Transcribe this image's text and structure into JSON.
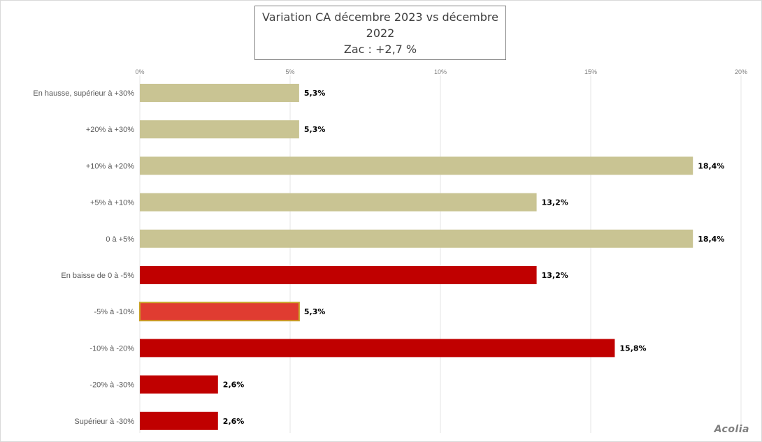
{
  "title": {
    "line1": "Variation CA décembre 2023 vs décembre",
    "line2": "2022",
    "line3": "Zac : +2,7 %"
  },
  "logo": "Acolia",
  "chart_data": {
    "type": "bar",
    "orientation": "horizontal",
    "title": "Variation CA décembre 2023 vs décembre 2022 — Zac : +2,7 %",
    "categories": [
      "En hausse, supérieur à +30%",
      "+20% à +30%",
      "+10% à +20%",
      "+5% à +10%",
      "0 à +5%",
      "En baisse de 0 à -5%",
      "-5% à -10%",
      "-10% à -20%",
      "-20% à -30%",
      "Supérieur à -30%"
    ],
    "values": [
      5.3,
      5.3,
      18.4,
      13.2,
      18.4,
      13.2,
      5.3,
      15.8,
      2.6,
      2.6
    ],
    "value_labels": [
      "5,3%",
      "5,3%",
      "18,4%",
      "13,2%",
      "18,4%",
      "13,2%",
      "5,3%",
      "15,8%",
      "2,6%",
      "2,6%"
    ],
    "x_ticks": [
      "0%",
      "5%",
      "10%",
      "15%",
      "20%"
    ],
    "xlim": [
      0,
      20
    ],
    "colors": {
      "increase": "#c9c493",
      "decrease": "#c00000",
      "highlight": "#e03c31",
      "highlight_border": "#c9a227"
    },
    "bar_colors": [
      "increase",
      "increase",
      "increase",
      "increase",
      "increase",
      "decrease",
      "highlight",
      "decrease",
      "decrease",
      "decrease"
    ],
    "grid": true,
    "legend": "none"
  }
}
